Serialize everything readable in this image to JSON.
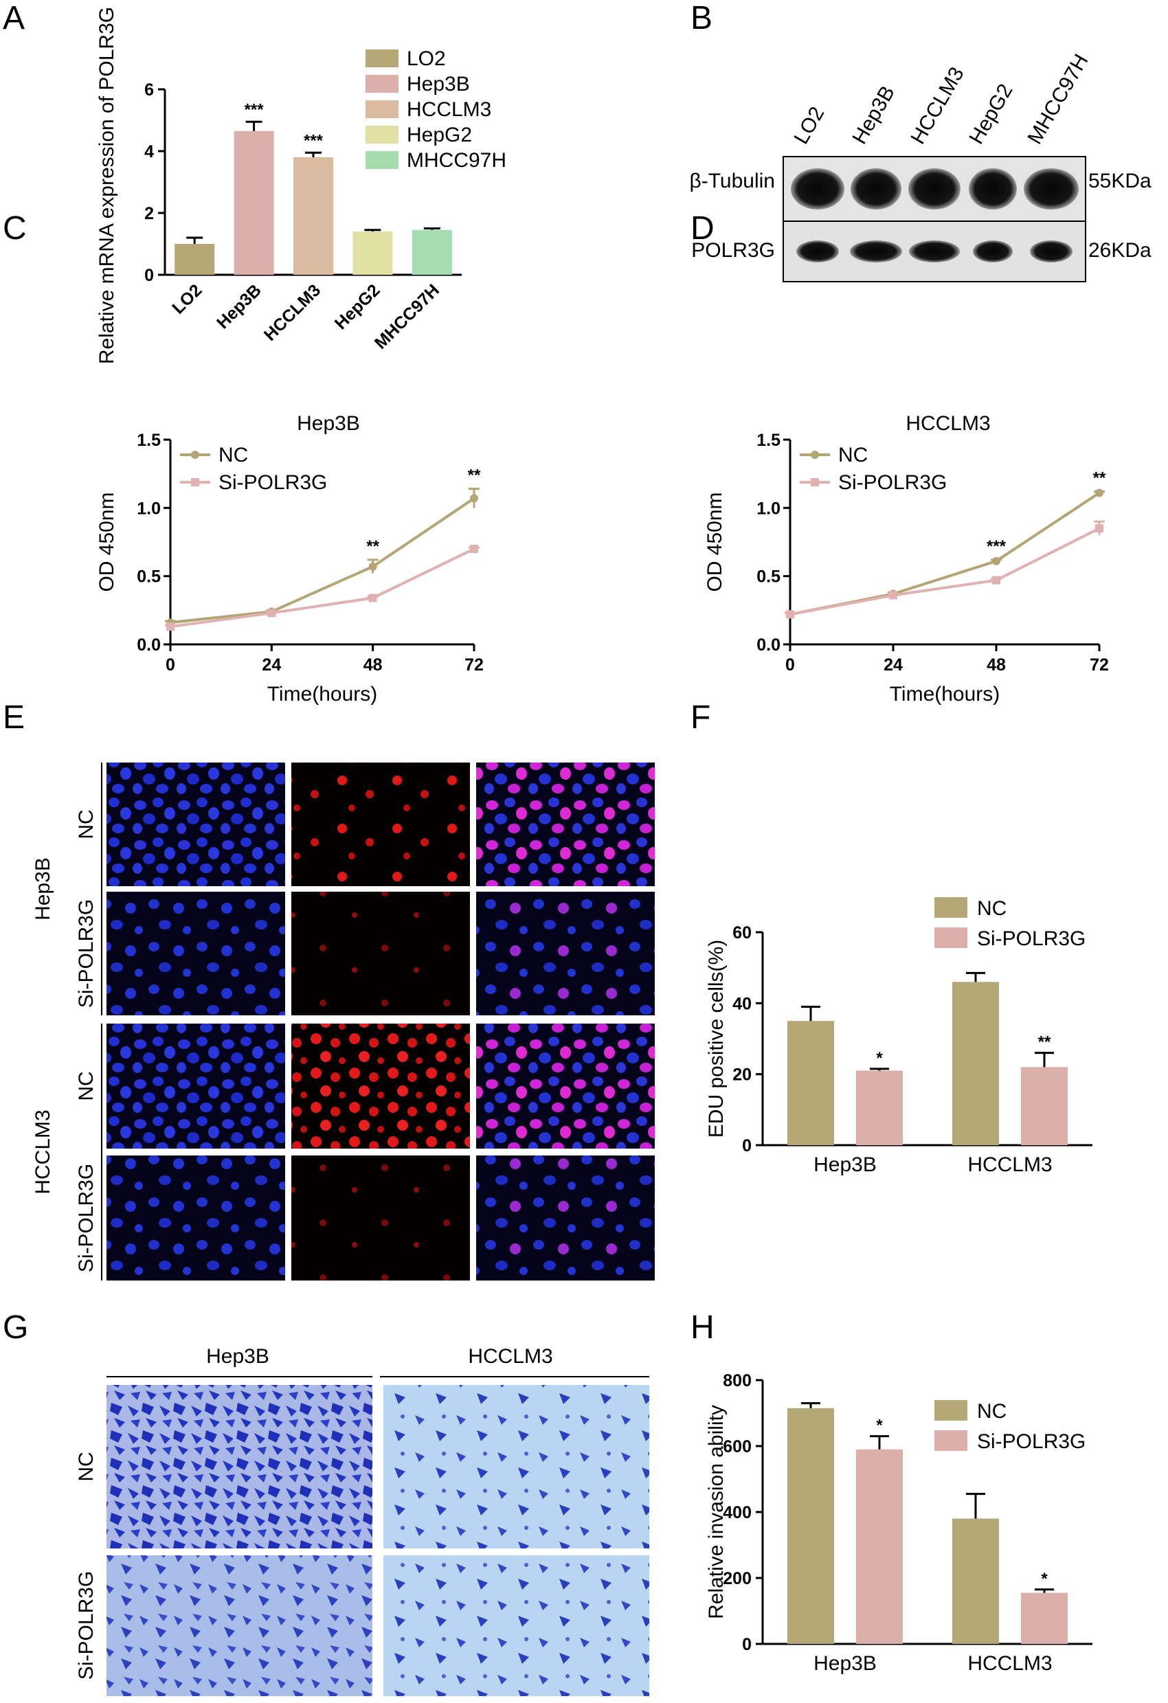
{
  "panels": {
    "A": "A",
    "B": "B",
    "C": "C",
    "D": "D",
    "E": "E",
    "F": "F",
    "G": "G",
    "H": "H"
  },
  "colors": {
    "gold": "#b4a876",
    "pink": "#dcafaa",
    "tan": "#dbbba1",
    "lime": "#e1e1a4",
    "mint": "#a4dcb0",
    "nc_line": "#b3a674",
    "si_line": "#dfb1b1"
  },
  "western_blot": {
    "lanes": [
      "LO2",
      "Hep3B",
      "HCCLM3",
      "HepG2",
      "MHCC97H"
    ],
    "rows": [
      {
        "protein": "β-Tubulin",
        "size": "55KDa"
      },
      {
        "protein": "POLR3G",
        "size": "26KDa"
      }
    ]
  },
  "image_panels": {
    "E": {
      "groups": [
        "Hep3B",
        "HCCLM3"
      ],
      "rows": [
        "NC",
        "Si-POLR3G",
        "NC",
        "Si-POLR3G"
      ]
    },
    "G": {
      "columns": [
        "Hep3B",
        "HCCLM3"
      ],
      "rows": [
        "NC",
        "Si-POLR3G"
      ]
    }
  },
  "chart_data": [
    {
      "id": "A",
      "type": "bar",
      "title": "",
      "categories": [
        "LO2",
        "Hep3B",
        "HCCLM3",
        "HepG2",
        "MHCC97H"
      ],
      "values": [
        1.0,
        4.65,
        3.8,
        1.4,
        1.45
      ],
      "errors": [
        0.2,
        0.3,
        0.15,
        0.05,
        0.05
      ],
      "significance": [
        "",
        "***",
        "***",
        "",
        ""
      ],
      "colors": [
        "gold",
        "pink",
        "tan",
        "lime",
        "mint"
      ],
      "legend": [
        "LO2",
        "Hep3B",
        "HCCLM3",
        "HepG2",
        "MHCC97H"
      ],
      "xlabel": "",
      "ylabel": "Relative mRNA expression of POLR3G",
      "ylim": [
        0,
        6
      ],
      "yticks": [
        "0",
        "2",
        "4",
        "6"
      ]
    },
    {
      "id": "C",
      "type": "line",
      "title": "Hep3B",
      "x": [
        0,
        24,
        48,
        72
      ],
      "xticks": [
        "0",
        "24",
        "48",
        "72"
      ],
      "series": [
        {
          "name": "NC",
          "values": [
            0.16,
            0.24,
            0.57,
            1.07
          ],
          "errors": [
            0.01,
            0.01,
            0.05,
            0.07
          ]
        },
        {
          "name": "Si-POLR3G",
          "values": [
            0.13,
            0.23,
            0.34,
            0.7
          ],
          "errors": [
            0.01,
            0.01,
            0.01,
            0.01
          ]
        }
      ],
      "significance": [
        "",
        "",
        "**",
        "**"
      ],
      "xlabel": "Time(hours)",
      "ylabel": "OD 450nm",
      "ylim": [
        0,
        1.5
      ],
      "yticks": [
        "0.0",
        "0.5",
        "1.0",
        "1.5"
      ]
    },
    {
      "id": "D",
      "type": "line",
      "title": "HCCLM3",
      "x": [
        0,
        24,
        48,
        72
      ],
      "xticks": [
        "0",
        "24",
        "48",
        "72"
      ],
      "series": [
        {
          "name": "NC",
          "values": [
            0.22,
            0.37,
            0.61,
            1.11
          ],
          "errors": [
            0.01,
            0.01,
            0.01,
            0.01
          ]
        },
        {
          "name": "Si-POLR3G",
          "values": [
            0.22,
            0.36,
            0.47,
            0.85
          ],
          "errors": [
            0.01,
            0.01,
            0.01,
            0.05
          ]
        }
      ],
      "significance": [
        "",
        "",
        "***",
        "**"
      ],
      "xlabel": "Time(hours)",
      "ylabel": "OD 450nm",
      "ylim": [
        0,
        1.5
      ],
      "yticks": [
        "0.0",
        "0.5",
        "1.0",
        "1.5"
      ]
    },
    {
      "id": "F",
      "type": "bar",
      "title": "",
      "categories": [
        "Hep3B",
        "HCCLM3"
      ],
      "series": [
        {
          "name": "NC",
          "values": [
            35,
            46
          ],
          "errors": [
            4,
            2.5
          ]
        },
        {
          "name": "Si-POLR3G",
          "values": [
            21,
            22
          ],
          "errors": [
            0.5,
            4
          ]
        }
      ],
      "significance": [
        "*",
        "**"
      ],
      "xlabel": "",
      "ylabel": "EDU positive cells(%)",
      "ylim": [
        0,
        60
      ],
      "yticks": [
        "0",
        "20",
        "40",
        "60"
      ]
    },
    {
      "id": "H",
      "type": "bar",
      "title": "",
      "categories": [
        "Hep3B",
        "HCCLM3"
      ],
      "series": [
        {
          "name": "NC",
          "values": [
            715,
            380
          ],
          "errors": [
            15,
            75
          ]
        },
        {
          "name": "Si-POLR3G",
          "values": [
            590,
            155
          ],
          "errors": [
            40,
            10
          ]
        }
      ],
      "significance": [
        "*",
        "*"
      ],
      "xlabel": "",
      "ylabel": "Relative invasion ability",
      "ylim": [
        0,
        800
      ],
      "yticks": [
        "0",
        "200",
        "400",
        "600",
        "800"
      ]
    }
  ]
}
